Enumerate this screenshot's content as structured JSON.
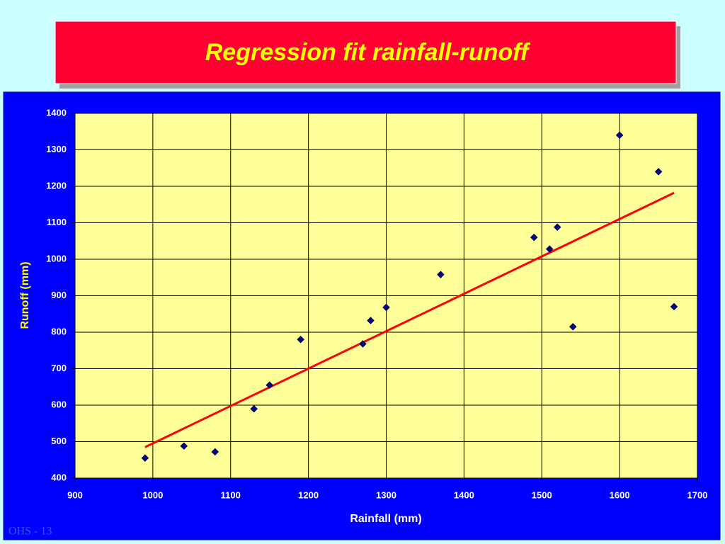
{
  "chart_data": {
    "type": "scatter",
    "title": "Regression fit rainfall-runoff",
    "x_label": "Rainfall (mm)",
    "y_label": "Runoff (mm)",
    "x": [
      990,
      1040,
      1080,
      1130,
      1150,
      1190,
      1270,
      1280,
      1300,
      1370,
      1490,
      1510,
      1520,
      1540,
      1600,
      1650,
      1670
    ],
    "values": [
      455,
      488,
      472,
      590,
      655,
      780,
      768,
      832,
      868,
      958,
      1060,
      1028,
      1088,
      815,
      1340,
      1240,
      870
    ],
    "color": "#000080",
    "trendline": {
      "x": [
        990,
        1670
      ],
      "values": [
        485,
        1182
      ],
      "color": "#ff0000"
    },
    "xlim": [
      900,
      1700
    ],
    "xticks": [
      900,
      1000,
      1100,
      1200,
      1300,
      1400,
      1500,
      1600,
      1700
    ],
    "ylim": [
      400,
      1400
    ],
    "yticks": [
      400,
      500,
      600,
      700,
      800,
      900,
      1000,
      1100,
      1200,
      1300,
      1400
    ],
    "grid": true
  },
  "footer": "OHS - 13"
}
